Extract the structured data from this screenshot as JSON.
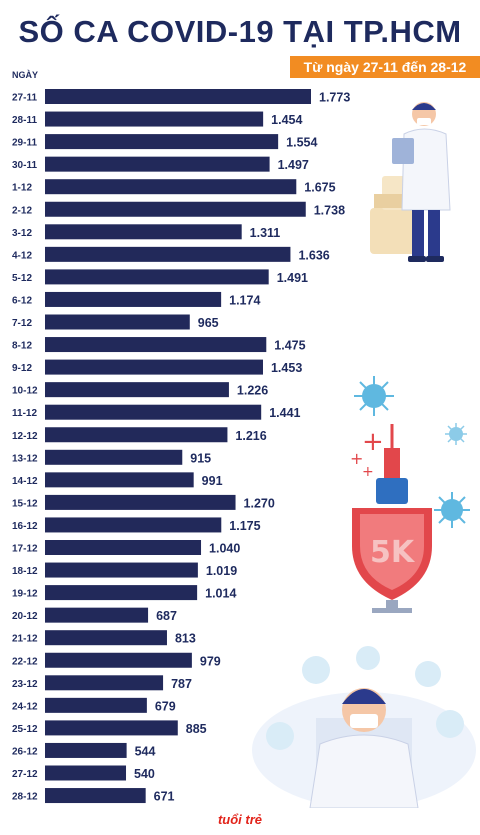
{
  "title": "SỐ CA COVID-19 TẠI TP.HCM",
  "subtitle": "Từ ngày 27-11 đến 28-12",
  "logo_text": "tuổi trẻ",
  "colors": {
    "bar": "#22295a",
    "title": "#1e2a5e",
    "accent": "#f28c22"
  },
  "chart_data": {
    "type": "bar",
    "orientation": "horizontal",
    "title": "SỐ CA COVID-19 TẠI TP.HCM",
    "subtitle": "Từ ngày 27-11 đến 28-12",
    "ylabel": "NGÀY",
    "xlim": [
      0,
      1773
    ],
    "categories": [
      "27-11",
      "28-11",
      "29-11",
      "30-11",
      "1-12",
      "2-12",
      "3-12",
      "4-12",
      "5-12",
      "6-12",
      "7-12",
      "8-12",
      "9-12",
      "10-12",
      "11-12",
      "12-12",
      "13-12",
      "14-12",
      "15-12",
      "16-12",
      "17-12",
      "18-12",
      "19-12",
      "20-12",
      "21-12",
      "22-12",
      "23-12",
      "24-12",
      "25-12",
      "26-12",
      "27-12",
      "28-12"
    ],
    "values": [
      1773,
      1454,
      1554,
      1497,
      1675,
      1738,
      1311,
      1636,
      1491,
      1174,
      965,
      1475,
      1453,
      1226,
      1441,
      1216,
      915,
      991,
      1270,
      1175,
      1040,
      1019,
      1014,
      687,
      813,
      979,
      787,
      679,
      885,
      544,
      540,
      671
    ],
    "labels": [
      "1.773",
      "1.454",
      "1.554",
      "1.497",
      "1.675",
      "1.738",
      "1.311",
      "1.636",
      "1.491",
      "1.174",
      "965",
      "1.475",
      "1.453",
      "1.226",
      "1.441",
      "1.216",
      "915",
      "991",
      "1.270",
      "1.175",
      "1.040",
      "1.019",
      "1.014",
      "687",
      "813",
      "979",
      "787",
      "679",
      "885",
      "544",
      "540",
      "671"
    ]
  }
}
